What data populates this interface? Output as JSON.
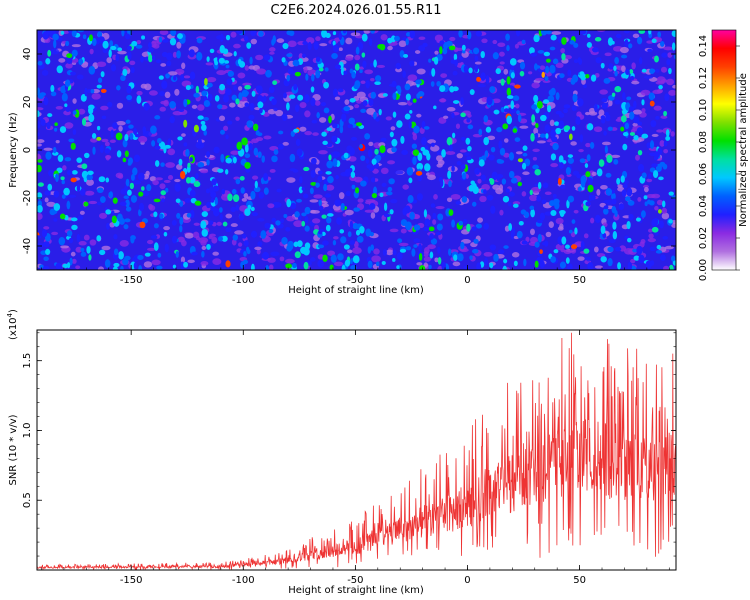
{
  "title": "C2E6.2024.026.01.55.R11",
  "chart_data": [
    {
      "type": "heatmap",
      "xlabel": "Height of straight line (km)",
      "ylabel": "Frequency (Hz)",
      "xlim": [
        -192,
        93
      ],
      "ylim": [
        -50,
        50
      ],
      "xticks": [
        -150,
        -100,
        -50,
        0,
        50
      ],
      "yticks": [
        -40,
        -20,
        0,
        20,
        40
      ],
      "xtick_labels": [
        "-150",
        "-100",
        "-50",
        "0",
        "50"
      ],
      "ytick_labels": [
        "-40",
        "-20",
        "0",
        "20",
        "40"
      ],
      "colorbar": {
        "label": "Normalized spectral amplitude",
        "range": [
          0.0,
          0.15
        ],
        "ticks": [
          0.0,
          0.02,
          0.04,
          0.06,
          0.08,
          0.1,
          0.12,
          0.14
        ],
        "tick_labels": [
          "0.00",
          "0.02",
          "0.04",
          "0.06",
          "0.08",
          "0.10",
          "0.12",
          "0.14"
        ],
        "colormap": [
          "#ffffff",
          "#b070e0",
          "#8a2be2",
          "#2020ff",
          "#0060ff",
          "#00c8ff",
          "#00e0a0",
          "#00e000",
          "#80e000",
          "#ffff00",
          "#ffa000",
          "#ff4000",
          "#ff0000",
          "#ff00a0"
        ]
      },
      "background_level": 0.02,
      "blob_level_mean": 0.045,
      "peak_level": 0.12
    },
    {
      "type": "line",
      "xlabel": "Height of straight line (km)",
      "ylabel": "SNR (10 * v/v)",
      "scale_note": "(x10",
      "scale_exp": "4",
      "scale_close": ")",
      "xlim": [
        -192,
        93
      ],
      "ylim": [
        0,
        1.72
      ],
      "xticks": [
        -150,
        -100,
        -50,
        0,
        50
      ],
      "yticks": [
        0.5,
        1.0,
        1.5
      ],
      "xtick_labels": [
        "-150",
        "-100",
        "-50",
        "0",
        "50"
      ],
      "ytick_labels": [
        "0.5",
        "1.0",
        "1.5"
      ],
      "line_color": "#ee3333",
      "series": [
        {
          "envelope_x": [
            -192,
            -150,
            -110,
            -95,
            -80,
            -65,
            -50,
            -35,
            -20,
            -5,
            10,
            25,
            40,
            55,
            70,
            85,
            93
          ],
          "envelope_y": [
            0.02,
            0.025,
            0.03,
            0.05,
            0.08,
            0.15,
            0.2,
            0.3,
            0.4,
            0.5,
            0.65,
            0.8,
            0.9,
            0.95,
            0.9,
            0.88,
            0.85
          ]
        }
      ]
    }
  ]
}
